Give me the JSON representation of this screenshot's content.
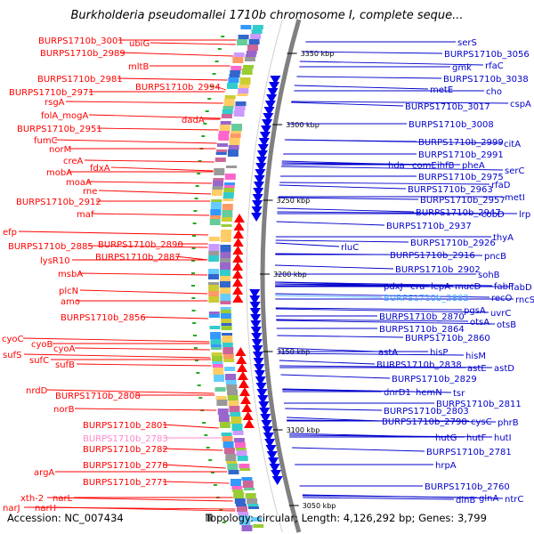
{
  "title": "Burkholderia pseudomallei 1710b chromosome I, complete seque...",
  "footer": {
    "accession": "Accession: NC_007434",
    "topology": "Topology: circular; Length: 4,126,292 bp; Genes: 3,799"
  },
  "positions": [
    {
      "label": "3350 kbp"
    },
    {
      "label": "3300 kbp"
    },
    {
      "label": "3250 kbp"
    },
    {
      "label": "3200 kbp"
    },
    {
      "label": "3150 kbp"
    },
    {
      "label": "3100 kbp"
    },
    {
      "label": "3050 kbp"
    }
  ],
  "left_labels": [
    {
      "text": "BURPS1710b_3001",
      "color": "#ff0000"
    },
    {
      "text": "ubiG",
      "color": "#ff0000"
    },
    {
      "text": "BURPS1710b_2989",
      "color": "#ff0000"
    },
    {
      "text": "mltB",
      "color": "#ff0000"
    },
    {
      "text": "BURPS1710b_2981",
      "color": "#ff0000"
    },
    {
      "text": "BURPS1710b_2994",
      "color": "#ff0000"
    },
    {
      "text": "BURPS1710b_2971",
      "color": "#ff0000"
    },
    {
      "text": "rsgA",
      "color": "#ff0000"
    },
    {
      "text": "folA_mogA",
      "color": "#ff0000"
    },
    {
      "text": "dadA",
      "color": "#ff0000"
    },
    {
      "text": "BURPS1710b_2951",
      "color": "#ff0000"
    },
    {
      "text": "fumC",
      "color": "#ff0000"
    },
    {
      "text": "norM",
      "color": "#ff0000"
    },
    {
      "text": "creA",
      "color": "#ff0000"
    },
    {
      "text": "fdxA",
      "color": "#ff0000"
    },
    {
      "text": "mobA",
      "color": "#ff0000"
    },
    {
      "text": "moaA",
      "color": "#ff0000"
    },
    {
      "text": "rne",
      "color": "#ff0000"
    },
    {
      "text": "BURPS1710b_2912",
      "color": "#ff0000"
    },
    {
      "text": "maf",
      "color": "#ff0000"
    },
    {
      "text": "efp",
      "color": "#ff0000"
    },
    {
      "text": "BURPS1710b_2890",
      "color": "#ff0000"
    },
    {
      "text": "BURPS1710b_2885",
      "color": "#ff0000"
    },
    {
      "text": "BURPS1710b_2887",
      "color": "#ff0000"
    },
    {
      "text": "lysR10",
      "color": "#ff0000"
    },
    {
      "text": "msbA",
      "color": "#ff0000"
    },
    {
      "text": "plcN",
      "color": "#ff0000"
    },
    {
      "text": "amo",
      "color": "#ff0000"
    },
    {
      "text": "BURPS1710b_2856",
      "color": "#ff0000"
    },
    {
      "text": "cyoC",
      "color": "#ff0000"
    },
    {
      "text": "cyoB",
      "color": "#ff0000"
    },
    {
      "text": "cyoA",
      "color": "#ff0000"
    },
    {
      "text": "sufS",
      "color": "#ff0000"
    },
    {
      "text": "sufC",
      "color": "#ff0000"
    },
    {
      "text": "sufB",
      "color": "#ff0000"
    },
    {
      "text": "nrdD",
      "color": "#ff0000"
    },
    {
      "text": "BURPS1710b_2808",
      "color": "#ff0000"
    },
    {
      "text": "norB",
      "color": "#ff0000"
    },
    {
      "text": "BURPS1710b_2801",
      "color": "#ff0000"
    },
    {
      "text": "BURPS1710b_2783",
      "color": "#ff88cc"
    },
    {
      "text": "BURPS1710b_2782",
      "color": "#ff0000"
    },
    {
      "text": "BURPS1710b_2778",
      "color": "#ff0000"
    },
    {
      "text": "argA",
      "color": "#ff0000"
    },
    {
      "text": "BURPS1710b_2771",
      "color": "#ff0000"
    },
    {
      "text": "xth-2",
      "color": "#ff0000"
    },
    {
      "text": "narL",
      "color": "#ff0000"
    },
    {
      "text": "narJ",
      "color": "#ff0000"
    },
    {
      "text": "narH",
      "color": "#ff0000"
    }
  ],
  "right_labels": [
    {
      "text": "serS",
      "color": "#0000cc"
    },
    {
      "text": "BURPS1710b_3056",
      "color": "#0000cc"
    },
    {
      "text": "rfaC",
      "color": "#0000cc"
    },
    {
      "text": "gmk",
      "color": "#0000cc"
    },
    {
      "text": "BURPS1710b_3038",
      "color": "#0000cc"
    },
    {
      "text": "metE",
      "color": "#0000cc"
    },
    {
      "text": "cho",
      "color": "#0000cc"
    },
    {
      "text": "cspA",
      "color": "#0000cc"
    },
    {
      "text": "BURPS1710b_3017",
      "color": "#0000cc"
    },
    {
      "text": "BURPS1710b_3008",
      "color": "#0000cc"
    },
    {
      "text": "BURPS1710b_2999",
      "color": "#0000cc"
    },
    {
      "text": "citA",
      "color": "#0000cc"
    },
    {
      "text": "BURPS1710b_2991",
      "color": "#0000cc"
    },
    {
      "text": "hda",
      "color": "#0000cc"
    },
    {
      "text": "comE",
      "color": "#0000cc"
    },
    {
      "text": "ihfB",
      "color": "#0000cc"
    },
    {
      "text": "pheA",
      "color": "#0000cc"
    },
    {
      "text": "serC",
      "color": "#0000cc"
    },
    {
      "text": "BURPS1710b_2975",
      "color": "#0000cc"
    },
    {
      "text": "rfaD",
      "color": "#0000cc"
    },
    {
      "text": "BURPS1710b_2963",
      "color": "#0000cc"
    },
    {
      "text": "metI",
      "color": "#0000cc"
    },
    {
      "text": "BURPS1710b_2957",
      "color": "#0000cc"
    },
    {
      "text": "BURPS1710b_2947",
      "color": "#0000cc"
    },
    {
      "text": "cobD",
      "color": "#0000cc"
    },
    {
      "text": "lrp",
      "color": "#0000cc"
    },
    {
      "text": "BURPS1710b_2937",
      "color": "#0000cc"
    },
    {
      "text": "thyA",
      "color": "#0000cc"
    },
    {
      "text": "BURPS1710b_2926",
      "color": "#0000cc"
    },
    {
      "text": "rluC",
      "color": "#0000cc"
    },
    {
      "text": "BURPS1710b_2916",
      "color": "#0000cc"
    },
    {
      "text": "pncB",
      "color": "#0000cc"
    },
    {
      "text": "BURPS1710b_2902",
      "color": "#0000cc"
    },
    {
      "text": "sohB",
      "color": "#0000cc"
    },
    {
      "text": "pdxJ",
      "color": "#0000cc"
    },
    {
      "text": "era",
      "color": "#0000cc"
    },
    {
      "text": "lepA",
      "color": "#0000cc"
    },
    {
      "text": "mucD",
      "color": "#0000cc"
    },
    {
      "text": "fabF",
      "color": "#0000cc"
    },
    {
      "text": "fabD",
      "color": "#0000cc"
    },
    {
      "text": "BURPS1710b_2882",
      "color": "#44aaff"
    },
    {
      "text": "recO",
      "color": "#0000cc"
    },
    {
      "text": "rncS",
      "color": "#0000cc"
    },
    {
      "text": "pgsA",
      "color": "#0000cc"
    },
    {
      "text": "uvrC",
      "color": "#0000cc"
    },
    {
      "text": "BURPS1710b_2870",
      "color": "#0000cc"
    },
    {
      "text": "otsA",
      "color": "#0000cc"
    },
    {
      "text": "otsB",
      "color": "#0000cc"
    },
    {
      "text": "BURPS1710b_2864",
      "color": "#0000cc"
    },
    {
      "text": "BURPS1710b_2860",
      "color": "#0000cc"
    },
    {
      "text": "astA",
      "color": "#0000cc"
    },
    {
      "text": "hisP",
      "color": "#0000cc"
    },
    {
      "text": "hisM",
      "color": "#0000cc"
    },
    {
      "text": "BURPS1710b_2838",
      "color": "#0000cc"
    },
    {
      "text": "astE",
      "color": "#0000cc"
    },
    {
      "text": "astD",
      "color": "#0000cc"
    },
    {
      "text": "BURPS1710b_2829",
      "color": "#0000cc"
    },
    {
      "text": "dnrD1",
      "color": "#0000cc"
    },
    {
      "text": "hemN",
      "color": "#0000cc"
    },
    {
      "text": "tsr",
      "color": "#0000cc"
    },
    {
      "text": "BURPS1710b_2811",
      "color": "#0000cc"
    },
    {
      "text": "BURPS1710b_2803",
      "color": "#0000cc"
    },
    {
      "text": "BURPS1710b_2798",
      "color": "#0000cc"
    },
    {
      "text": "cysC",
      "color": "#0000cc"
    },
    {
      "text": "phrB",
      "color": "#0000cc"
    },
    {
      "text": "hutG",
      "color": "#0000cc"
    },
    {
      "text": "hutF",
      "color": "#0000cc"
    },
    {
      "text": "hutI",
      "color": "#0000cc"
    },
    {
      "text": "BURPS1710b_2781",
      "color": "#0000cc"
    },
    {
      "text": "hrpA",
      "color": "#0000cc"
    },
    {
      "text": "glnA",
      "color": "#0000cc"
    },
    {
      "text": "ntrC",
      "color": "#0000cc"
    },
    {
      "text": "BURPS1710b_2760",
      "color": "#0000cc"
    },
    {
      "text": "dinB",
      "color": "#0000cc"
    }
  ],
  "colors": {
    "forward": "#ff0000",
    "reverse": "#0000ee",
    "backbone": "#808080",
    "feature_palette": [
      "#ff66cc",
      "#33cccc",
      "#66ccff",
      "#cc99ff",
      "#99cc33",
      "#ffcc66",
      "#3366cc",
      "#cc6699",
      "#66cc99",
      "#999999",
      "#ff9966",
      "#3399ff",
      "#cccc33",
      "#9966cc"
    ]
  }
}
